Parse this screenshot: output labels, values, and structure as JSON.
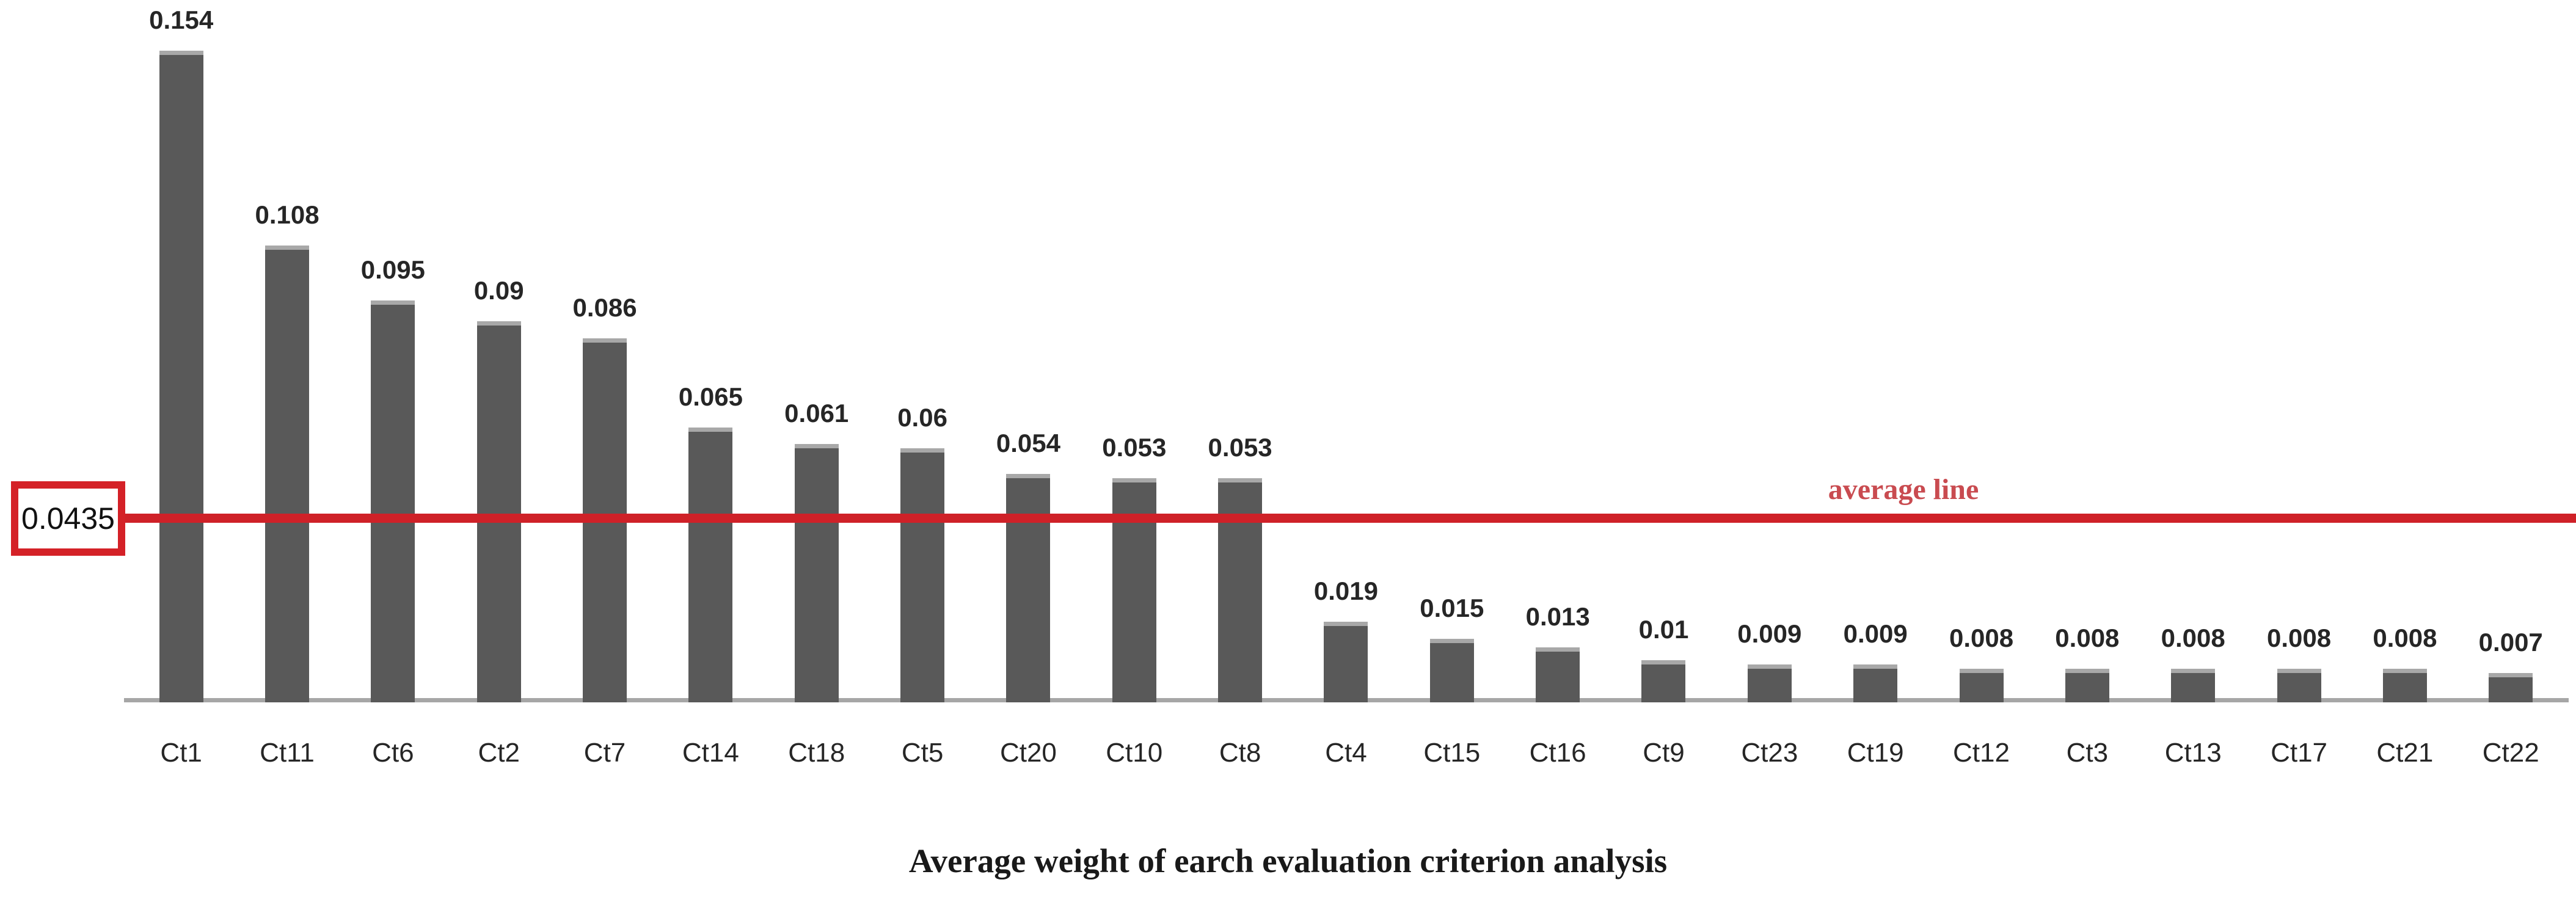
{
  "chart_data": {
    "type": "bar",
    "title": "Average weight of earch evaluation criterion analysis",
    "categories": [
      "Ct1",
      "Ct11",
      "Ct6",
      "Ct2",
      "Ct7",
      "Ct14",
      "Ct18",
      "Ct5",
      "Ct20",
      "Ct10",
      "Ct8",
      "Ct4",
      "Ct15",
      "Ct16",
      "Ct9",
      "Ct23",
      "Ct19",
      "Ct12",
      "Ct3",
      "Ct13",
      "Ct17",
      "Ct21",
      "Ct22"
    ],
    "values": [
      0.154,
      0.108,
      0.095,
      0.09,
      0.086,
      0.065,
      0.061,
      0.06,
      0.054,
      0.053,
      0.053,
      0.019,
      0.015,
      0.013,
      0.01,
      0.009,
      0.009,
      0.008,
      0.008,
      0.008,
      0.008,
      0.008,
      0.007
    ],
    "value_labels": [
      "0.154",
      "0.108",
      "0.095",
      "0.09",
      "0.086",
      "0.065",
      "0.061",
      "0.06",
      "0.054",
      "0.053",
      "0.053",
      "0.019",
      "0.015",
      "0.013",
      "0.01",
      "0.009",
      "0.009",
      "0.008",
      "0.008",
      "0.008",
      "0.008",
      "0.008",
      "0.007"
    ],
    "xlabel": "",
    "ylabel": "",
    "ylim": [
      0,
      0.154
    ],
    "grid": false,
    "legend_position": "none",
    "average_line": {
      "value": 0.0435,
      "boxed_value_label": "0.0435",
      "label": "average line"
    },
    "colors": {
      "bar": "#595959",
      "bar_cap": "#a8a8a8",
      "axis": "#a6a6a6",
      "average_line": "#cf2128",
      "average_box_border": "#d42127",
      "average_text": "#c94b50",
      "value_label_text": "#262626",
      "title_text": "#191919"
    }
  }
}
